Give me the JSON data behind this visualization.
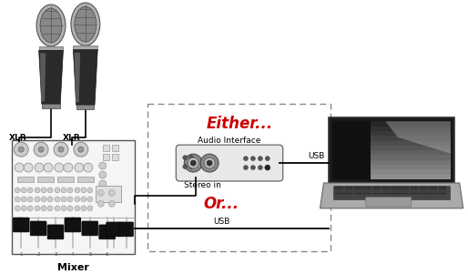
{
  "fig_width": 5.14,
  "fig_height": 3.01,
  "dpi": 100,
  "bg_color": "#ffffff",
  "xlr1_label": "XLR",
  "xlr2_label": "XLR",
  "mixer_label": "Mixer",
  "either_label": "Either...",
  "either_color": "#cc0000",
  "or_label": "Or...",
  "or_color": "#cc0000",
  "audio_interface_label": "Audio Interface",
  "stereo_in_label": "Stereo in",
  "usb_label_top": "USB",
  "usb_label_bottom": "USB"
}
